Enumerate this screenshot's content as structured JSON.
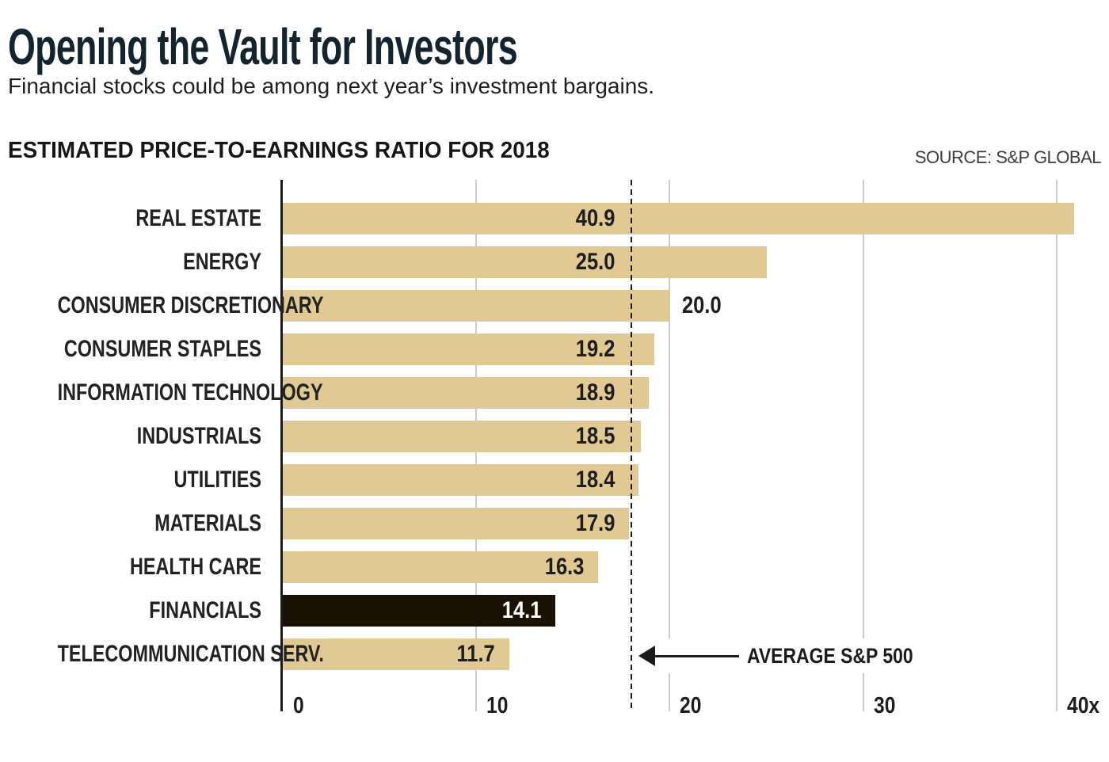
{
  "header": {
    "title": "Opening the Vault for Investors",
    "subtitle": "Financial stocks could be among next year’s investment bargains."
  },
  "chart_header": {
    "heading": "ESTIMATED PRICE-TO-EARNINGS RATIO FOR 2018",
    "source": "SOURCE: S&P GLOBAL"
  },
  "chart_data": {
    "type": "bar",
    "orientation": "horizontal",
    "title": "ESTIMATED PRICE-TO-EARNINGS RATIO FOR 2018",
    "categories": [
      "REAL ESTATE",
      "ENERGY",
      "CONSUMER DISCRETIONARY",
      "CONSUMER STAPLES",
      "INFORMATION TECHNOLOGY",
      "INDUSTRIALS",
      "UTILITIES",
      "MATERIALS",
      "HEALTH CARE",
      "FINANCIALS",
      "TELECOMMUNICATION SERV."
    ],
    "values": [
      40.9,
      25.0,
      20.0,
      19.2,
      18.9,
      18.5,
      18.4,
      17.9,
      16.3,
      14.1,
      11.7
    ],
    "value_labels": [
      "40.9",
      "25.0",
      "20.0",
      "19.2",
      "18.9",
      "18.5",
      "18.4",
      "17.9",
      "16.3",
      "14.1",
      "11.7"
    ],
    "outside_label_categories": [
      "CONSUMER DISCRETIONARY"
    ],
    "highlighted_category": "FINANCIALS",
    "xlim": [
      0,
      42.7
    ],
    "x_ticks": [
      {
        "value": 0,
        "label": "0"
      },
      {
        "value": 10,
        "label": "10"
      },
      {
        "value": 20,
        "label": "20"
      },
      {
        "value": 30,
        "label": "30"
      },
      {
        "value": 40,
        "label": "40x"
      }
    ],
    "grid": "vertical",
    "reference_line": {
      "value": 18,
      "style": "dashed",
      "label": "AVERAGE S&P 500"
    },
    "colors": {
      "bar": "#E0C992",
      "highlighted_bar": "#191103",
      "value_text": "#1D1D1D",
      "highlighted_value_text": "#FFFFFF",
      "grid_line": "#CCCCCC",
      "axis_line": "#1B1B1B",
      "reference_line": "#1A1A1A",
      "title_text": "#13242F"
    }
  }
}
